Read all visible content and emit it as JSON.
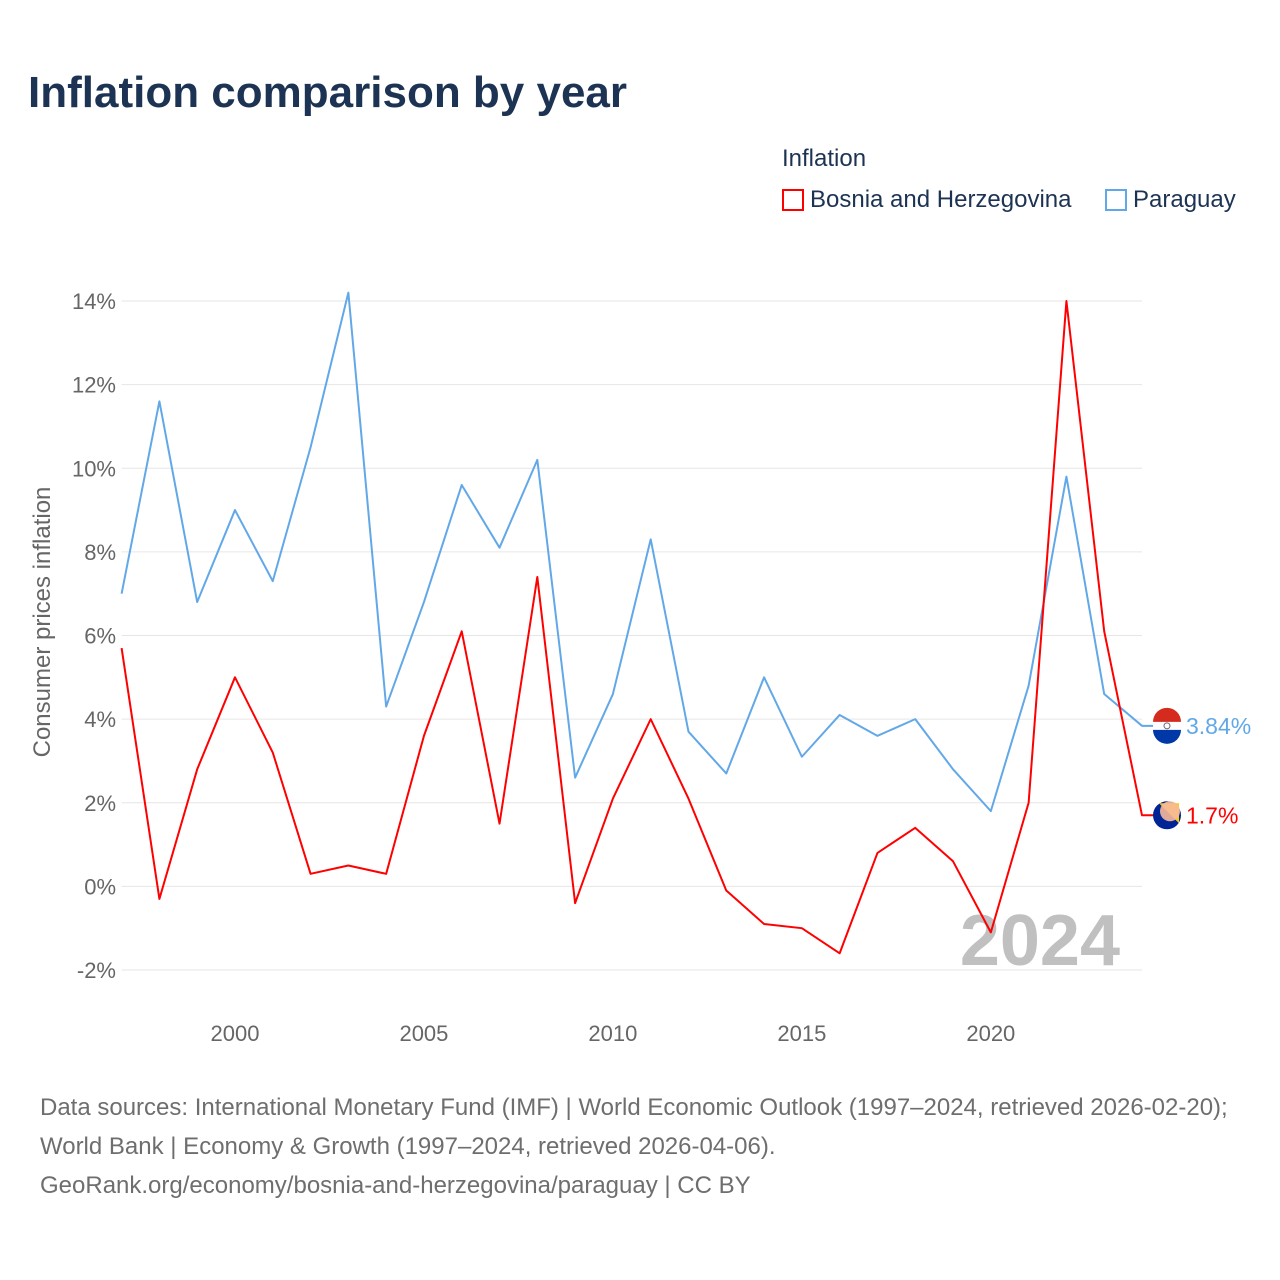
{
  "title": "Inflation comparison by year",
  "legend": {
    "title": "Inflation",
    "items": [
      {
        "label": "Bosnia and Herzegovina",
        "color": "#ff0000"
      },
      {
        "label": "Paraguay",
        "color": "#62a8e8"
      }
    ]
  },
  "year_watermark": "2024",
  "footer": {
    "line1": "Data sources: International Monetary Fund (IMF) | World Economic Outlook (1997–2024, retrieved 2026-02-20); World Bank | Economy & Growth (1997–2024, retrieved 2026-04-06).",
    "line2": "GeoRank.org/economy/bosnia-and-herzegovina/paraguay | CC BY"
  },
  "chart_data": {
    "type": "line",
    "title": "Inflation comparison by year",
    "xlabel": "",
    "ylabel": "Consumer prices inflation",
    "xlim": [
      1997,
      2024
    ],
    "ylim": [
      -2,
      14
    ],
    "x_ticks": [
      2000,
      2005,
      2010,
      2015,
      2020
    ],
    "x_tick_labels": [
      "2000",
      "2005",
      "2010",
      "2015",
      "2020"
    ],
    "y_ticks": [
      -2,
      0,
      2,
      4,
      6,
      8,
      10,
      12,
      14
    ],
    "y_tick_labels": [
      "-2%",
      "0%",
      "2%",
      "4%",
      "6%",
      "8%",
      "10%",
      "12%",
      "14%"
    ],
    "grid": true,
    "legend_position": "top-right",
    "x": [
      1997,
      1998,
      1999,
      2000,
      2001,
      2002,
      2003,
      2004,
      2005,
      2006,
      2007,
      2008,
      2009,
      2010,
      2011,
      2012,
      2013,
      2014,
      2015,
      2016,
      2017,
      2018,
      2019,
      2020,
      2021,
      2022,
      2023,
      2024
    ],
    "series": [
      {
        "name": "Bosnia and Herzegovina",
        "color": "#ff0000",
        "end_label": "1.7%",
        "values": [
          5.7,
          -0.3,
          2.8,
          5.0,
          3.2,
          0.3,
          0.5,
          0.3,
          3.6,
          6.1,
          1.5,
          7.4,
          -0.4,
          2.1,
          4.0,
          2.1,
          -0.1,
          -0.9,
          -1.0,
          -1.6,
          0.8,
          1.4,
          0.6,
          -1.1,
          2.0,
          14.0,
          6.1,
          1.7
        ]
      },
      {
        "name": "Paraguay",
        "color": "#62a8e8",
        "end_label": "3.84%",
        "values": [
          7.0,
          11.6,
          6.8,
          9.0,
          7.3,
          10.5,
          14.2,
          4.3,
          6.8,
          9.6,
          8.1,
          10.2,
          2.6,
          4.6,
          8.3,
          3.7,
          2.7,
          5.0,
          3.1,
          4.1,
          3.6,
          4.0,
          2.8,
          1.8,
          4.8,
          9.8,
          4.6,
          3.84
        ]
      }
    ]
  }
}
